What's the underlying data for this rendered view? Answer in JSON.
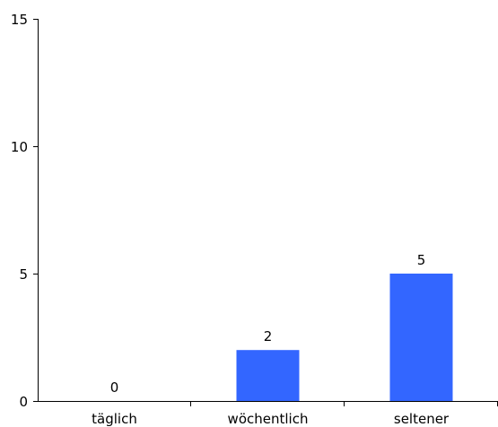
{
  "chart_data": {
    "type": "bar",
    "categories": [
      "täglich",
      "wöchentlich",
      "seltener"
    ],
    "values": [
      0,
      2,
      5
    ],
    "data_labels": [
      "0",
      "2",
      "5"
    ],
    "title": "",
    "xlabel": "",
    "ylabel": "",
    "ylim": [
      0,
      15
    ],
    "y_ticks": [
      0,
      5,
      10,
      15
    ],
    "y_tick_labels": [
      "0",
      "5",
      "10",
      "15"
    ],
    "grid": false,
    "legend": "none",
    "bar_color": "#3366ff",
    "axis_color": "#000000"
  }
}
